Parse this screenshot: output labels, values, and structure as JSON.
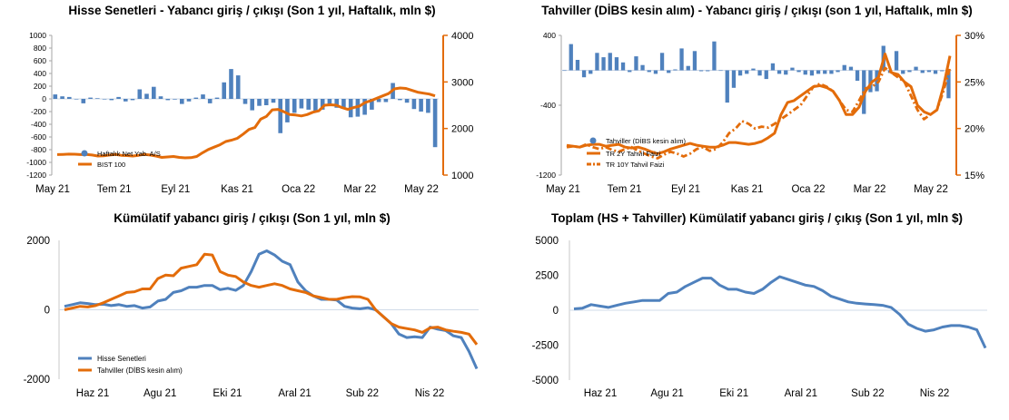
{
  "chart_data": [
    {
      "type": "bar",
      "title": "Hisse Senetleri - Yabancı giriş / çıkışı (Son 1 yıl, Haftalık, mln $)",
      "x_tick_labels": [
        "May 21",
        "Tem 21",
        "Eyl 21",
        "Kas 21",
        "Oca 22",
        "Mar 22",
        "May 22"
      ],
      "y_left": {
        "range": [
          -1200,
          1000
        ],
        "ticks": [
          "1000",
          "800",
          "600",
          "400",
          "200",
          "0",
          "-200",
          "-400",
          "-600",
          "-800",
          "-1000",
          "-1200"
        ]
      },
      "y_right": {
        "range": [
          1000,
          4000
        ],
        "ticks": [
          "4000",
          "3000",
          "2000",
          "1000"
        ]
      },
      "legend_placement": "bottom-left",
      "series": [
        {
          "name": "Haftalık Net Yab. A/S",
          "kind": "bar",
          "axis": "left",
          "color": "#4f81bd",
          "values": [
            70,
            40,
            30,
            0,
            -70,
            20,
            10,
            0,
            -20,
            30,
            -40,
            -20,
            150,
            80,
            190,
            40,
            -20,
            -10,
            -80,
            -40,
            20,
            70,
            -70,
            20,
            260,
            470,
            370,
            -80,
            -180,
            -110,
            -100,
            -60,
            -540,
            -370,
            -220,
            -150,
            -170,
            -190,
            -170,
            -80,
            -140,
            -150,
            -290,
            -280,
            -250,
            -170,
            -50,
            -50,
            250,
            -20,
            -60,
            -160,
            -200,
            -220,
            -760
          ]
        },
        {
          "name": "BIST 100",
          "kind": "line",
          "axis": "right",
          "color": "#e36c0a",
          "values": [
            1440,
            1445,
            1450,
            1448,
            1440,
            1445,
            1430,
            1410,
            1415,
            1430,
            1445,
            1425,
            1418,
            1410,
            1425,
            1445,
            1430,
            1410,
            1380,
            1390,
            1400,
            1380,
            1370,
            1375,
            1400,
            1480,
            1550,
            1600,
            1650,
            1720,
            1750,
            1790,
            1880,
            1980,
            2020,
            2200,
            2260,
            2400,
            2410,
            2360,
            2300,
            2290,
            2270,
            2300,
            2350,
            2380,
            2500,
            2510,
            2500,
            2450,
            2410,
            2450,
            2480,
            2560,
            2600,
            2650,
            2700,
            2750,
            2850,
            2870,
            2860,
            2820,
            2780,
            2760,
            2740,
            2700
          ]
        }
      ]
    },
    {
      "type": "bar",
      "title": "Tahviller (DİBS kesin alım) - Yabancı giriş / çıkışı (son 1 yıl, Haftalık, mln $)",
      "x_tick_labels": [
        "May 21",
        "Tem 21",
        "Eyl 21",
        "Kas 21",
        "Oca 22",
        "Mar 22",
        "May 22"
      ],
      "y_left": {
        "range": [
          -1200,
          400
        ],
        "ticks": [
          "400",
          "-400",
          "-1200"
        ]
      },
      "y_right": {
        "range": [
          15,
          30
        ],
        "ticks": [
          "30%",
          "25%",
          "20%",
          "15%"
        ]
      },
      "legend_placement": "bottom-left",
      "series": [
        {
          "name": "Tahviller (DİBS kesin alım)",
          "kind": "bar",
          "axis": "left",
          "color": "#4f81bd",
          "values": [
            0,
            300,
            120,
            -80,
            -40,
            200,
            150,
            200,
            150,
            90,
            -20,
            160,
            60,
            -20,
            -40,
            200,
            -30,
            10,
            250,
            50,
            220,
            -10,
            -10,
            330,
            0,
            -370,
            -200,
            -60,
            -40,
            20,
            -60,
            -100,
            80,
            -40,
            -50,
            30,
            -20,
            -50,
            -60,
            -40,
            -40,
            -40,
            -20,
            60,
            40,
            -120,
            -500,
            -250,
            -240,
            280,
            -30,
            220,
            -40,
            -20,
            40,
            -30,
            -20,
            -40,
            -10,
            -320
          ]
        },
        {
          "name": "TR 2Y Tahvil Faizi",
          "kind": "line",
          "axis": "right",
          "style": "solid",
          "color": "#e36c0a",
          "values": [
            18.0,
            18.1,
            18.0,
            18.2,
            18.3,
            18.3,
            18.1,
            18.2,
            18.3,
            18.0,
            17.9,
            18.0,
            17.8,
            17.5,
            17.3,
            17.5,
            17.8,
            18.0,
            18.2,
            18.4,
            18.2,
            18.1,
            18.0,
            18.0,
            18.2,
            18.5,
            18.5,
            18.4,
            18.3,
            18.4,
            18.6,
            19.0,
            19.5,
            21.5,
            22.8,
            23.0,
            23.5,
            24.0,
            24.5,
            24.6,
            24.4,
            24.0,
            23.0,
            21.5,
            21.5,
            22.3,
            24.0,
            25.0,
            25.5,
            28.0,
            26.0,
            25.8,
            25.0,
            24.5,
            22.5,
            21.8,
            21.5,
            22.0,
            24.5,
            27.8
          ]
        },
        {
          "name": "TR 10Y Tahvil Faizi",
          "kind": "line",
          "axis": "right",
          "style": "dash-dot",
          "color": "#e36c0a",
          "values": [
            18.2,
            18.1,
            18.0,
            18.3,
            18.0,
            17.8,
            18.0,
            17.7,
            17.5,
            17.8,
            18.0,
            17.6,
            17.3,
            17.0,
            16.8,
            17.2,
            17.5,
            17.3,
            17.0,
            17.3,
            17.8,
            18.0,
            17.6,
            17.8,
            18.5,
            19.5,
            20.0,
            20.8,
            20.5,
            20.0,
            20.2,
            20.1,
            20.5,
            21.0,
            21.5,
            22.0,
            22.5,
            23.5,
            24.5,
            24.8,
            24.5,
            24.0,
            23.0,
            22.0,
            21.8,
            23.0,
            24.3,
            24.5,
            25.0,
            26.5,
            26.0,
            25.5,
            25.0,
            23.5,
            22.0,
            21.0,
            21.5,
            22.0,
            24.0,
            26.5
          ]
        }
      ]
    },
    {
      "type": "line",
      "title": "Kümülatif yabancı giriş / çıkışı (Son 1 yıl, mln $)",
      "x_tick_labels": [
        "Haz 21",
        "Agu 21",
        "Eki 21",
        "Aral 21",
        "Sub 22",
        "Nis 22"
      ],
      "y": {
        "range": [
          -2000,
          2000
        ],
        "ticks": [
          "2000",
          "0",
          "-2000"
        ]
      },
      "legend_placement": "bottom-left",
      "series": [
        {
          "name": "Hisse Senetleri",
          "color": "#4f81bd",
          "values": [
            100,
            150,
            200,
            180,
            150,
            160,
            120,
            150,
            100,
            120,
            50,
            80,
            250,
            300,
            500,
            550,
            650,
            650,
            700,
            700,
            580,
            620,
            560,
            700,
            1100,
            1600,
            1700,
            1580,
            1400,
            1300,
            800,
            550,
            400,
            300,
            300,
            280,
            100,
            50,
            30,
            60,
            0,
            -200,
            -400,
            -700,
            -800,
            -780,
            -800,
            -500,
            -560,
            -600,
            -750,
            -800,
            -1200,
            -1700
          ]
        },
        {
          "name": "Tahviller (DİBS kesin alım)",
          "color": "#e36c0a",
          "values": [
            0,
            50,
            100,
            80,
            120,
            200,
            300,
            400,
            500,
            520,
            600,
            600,
            900,
            1000,
            980,
            1200,
            1250,
            1300,
            1600,
            1580,
            1100,
            1000,
            960,
            800,
            700,
            650,
            700,
            750,
            700,
            600,
            550,
            500,
            400,
            350,
            300,
            300,
            350,
            380,
            370,
            300,
            0,
            -200,
            -400,
            -500,
            -540,
            -580,
            -650,
            -520,
            -500,
            -580,
            -620,
            -650,
            -700,
            -1000
          ]
        }
      ]
    },
    {
      "type": "line",
      "title": "Toplam (HS + Tahviller) Kümülatif yabancı giriş / çıkış (Son 1 yıl, mln $)",
      "x_tick_labels": [
        "Haz 21",
        "Agu 21",
        "Eki 21",
        "Aral 21",
        "Sub 22",
        "Nis 22"
      ],
      "y": {
        "range": [
          -5000,
          5000
        ],
        "ticks": [
          "5000",
          "2500",
          "0",
          "-2500",
          "-5000"
        ]
      },
      "series": [
        {
          "name": "",
          "color": "#4f81bd",
          "values": [
            100,
            150,
            400,
            300,
            200,
            350,
            500,
            600,
            700,
            700,
            700,
            1200,
            1300,
            1700,
            2000,
            2300,
            2300,
            1800,
            1500,
            1500,
            1300,
            1200,
            1500,
            2000,
            2400,
            2200,
            2000,
            1800,
            1700,
            1400,
            1000,
            800,
            600,
            500,
            450,
            400,
            350,
            200,
            -300,
            -1000,
            -1300,
            -1500,
            -1400,
            -1200,
            -1100,
            -1100,
            -1200,
            -1400,
            -2700
          ]
        }
      ]
    }
  ]
}
